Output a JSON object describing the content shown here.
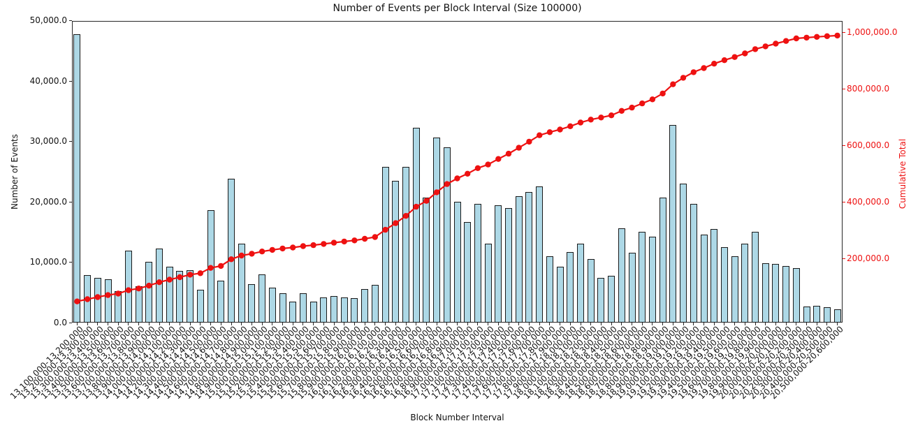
{
  "title": "Number of Events per Block Interval (Size 100000)",
  "axes": {
    "x_label": "Block Number Interval",
    "y_left_label": "Number of Events",
    "y_right_label": "Cumulative Total",
    "y_left_tick_labels": [
      "0.0",
      "10,000.0",
      "20,000.0",
      "30,000.0",
      "40,000.0",
      "50,000.0"
    ],
    "y_right_tick_labels": [
      "200,000.0",
      "400,000.0",
      "600,000.0",
      "800,000.0",
      "1,000,000.0"
    ]
  },
  "colors": {
    "bar_fill": "#ADD8E6",
    "bar_edge": "#1a1a1a",
    "line": "#EE1111",
    "right_axis_text": "#EE1111",
    "text": "#111111"
  },
  "chart_data": {
    "type": "bar",
    "title": "Number of Events per Block Interval (Size 100000)",
    "xlabel": "Block Number Interval",
    "ylabel_left": "Number of Events",
    "ylabel_right": "Cumulative Total",
    "left_ylim": [
      0,
      50000
    ],
    "left_ticks": [
      0,
      10000,
      20000,
      30000,
      40000,
      50000
    ],
    "right_ticks": [
      200000,
      400000,
      600000,
      800000,
      1000000
    ],
    "grid": false,
    "legend": "none",
    "categories": [
      "13,100,000-13,200,000",
      "13,200,000-13,300,000",
      "13,300,000-13,400,000",
      "13,400,000-13,500,000",
      "13,500,000-13,600,000",
      "13,600,000-13,700,000",
      "13,700,000-13,800,000",
      "13,800,000-13,900,000",
      "13,900,000-14,000,000",
      "14,000,000-14,100,000",
      "14,100,000-14,200,000",
      "14,200,000-14,300,000",
      "14,300,000-14,400,000",
      "14,400,000-14,500,000",
      "14,500,000-14,600,000",
      "14,600,000-14,700,000",
      "14,700,000-14,800,000",
      "14,800,000-14,900,000",
      "14,900,000-15,000,000",
      "15,000,000-15,100,000",
      "15,100,000-15,200,000",
      "15,200,000-15,300,000",
      "15,300,000-15,400,000",
      "15,400,000-15,500,000",
      "15,500,000-15,600,000",
      "15,600,000-15,700,000",
      "15,700,000-15,800,000",
      "15,800,000-15,900,000",
      "15,900,000-16,000,000",
      "16,000,000-16,100,000",
      "16,100,000-16,200,000",
      "16,200,000-16,300,000",
      "16,300,000-16,400,000",
      "16,400,000-16,500,000",
      "16,500,000-16,600,000",
      "16,600,000-16,700,000",
      "16,700,000-16,800,000",
      "16,800,000-16,900,000",
      "16,900,000-17,000,000",
      "17,000,000-17,100,000",
      "17,100,000-17,200,000",
      "17,200,000-17,300,000",
      "17,300,000-17,400,000",
      "17,400,000-17,500,000",
      "17,500,000-17,600,000",
      "17,600,000-17,700,000",
      "17,700,000-17,800,000",
      "17,800,000-17,900,000",
      "17,900,000-18,000,000",
      "18,000,000-18,100,000",
      "18,100,000-18,200,000",
      "18,200,000-18,300,000",
      "18,300,000-18,400,000",
      "18,400,000-18,500,000",
      "18,500,000-18,600,000",
      "18,600,000-18,700,000",
      "18,700,000-18,800,000",
      "18,800,000-18,900,000",
      "18,900,000-19,000,000",
      "19,000,000-19,100,000",
      "19,100,000-19,200,000",
      "19,200,000-19,300,000",
      "19,300,000-19,400,000",
      "19,400,000-19,500,000",
      "19,500,000-19,600,000",
      "19,600,000-19,700,000",
      "19,700,000-19,800,000",
      "19,800,000-19,900,000",
      "19,900,000-20,000,000",
      "20,000,000-20,100,000",
      "20,100,000-20,200,000",
      "20,200,000-20,300,000",
      "20,300,000-20,400,000",
      "20,400,000-20,500,000",
      "20,500,000-20,600,000"
    ],
    "values": [
      47700,
      7900,
      7400,
      7200,
      5200,
      11900,
      6000,
      10100,
      12200,
      9200,
      8600,
      8700,
      5400,
      18600,
      6900,
      23800,
      13100,
      6300,
      8000,
      5800,
      4800,
      3500,
      4900,
      3500,
      4200,
      4400,
      4200,
      4000,
      5600,
      6200,
      25800,
      23400,
      25700,
      32200,
      20700,
      30600,
      29000,
      20000,
      16600,
      19600,
      13000,
      19400,
      18900,
      20900,
      21600,
      22500,
      11000,
      9300,
      11700,
      13000,
      10500,
      7400,
      7700,
      15600,
      11600,
      15000,
      14200,
      20700,
      32700,
      23000,
      19600,
      14600,
      15500,
      12500,
      11000,
      13000,
      15000,
      9800,
      9700,
      9400,
      9000,
      2700,
      2800,
      2500,
      2200
    ],
    "series": [
      {
        "name": "Number of Events",
        "type": "bar",
        "axis": "left"
      },
      {
        "name": "Cumulative Total",
        "type": "line",
        "axis": "right"
      }
    ],
    "cumulative": [
      47700,
      55600,
      63000,
      70200,
      75400,
      87300,
      93300,
      103400,
      115600,
      124800,
      133400,
      142100,
      147500,
      166100,
      173000,
      196800,
      209900,
      216200,
      224200,
      230000,
      234800,
      238300,
      243200,
      246700,
      250900,
      255300,
      259500,
      263500,
      269100,
      275300,
      301100,
      324500,
      350200,
      382400,
      403100,
      433700,
      462700,
      482700,
      499300,
      518900,
      531900,
      551300,
      570200,
      591100,
      612700,
      635200,
      646200,
      655500,
      667200,
      680200,
      690700,
      698100,
      705800,
      721400,
      733000,
      748000,
      762200,
      782900,
      815600,
      838600,
      858200,
      872800,
      888300,
      900800,
      911800,
      924800,
      939800,
      949600,
      959300,
      968700,
      977700,
      980400,
      983200,
      985700,
      987900
    ]
  }
}
